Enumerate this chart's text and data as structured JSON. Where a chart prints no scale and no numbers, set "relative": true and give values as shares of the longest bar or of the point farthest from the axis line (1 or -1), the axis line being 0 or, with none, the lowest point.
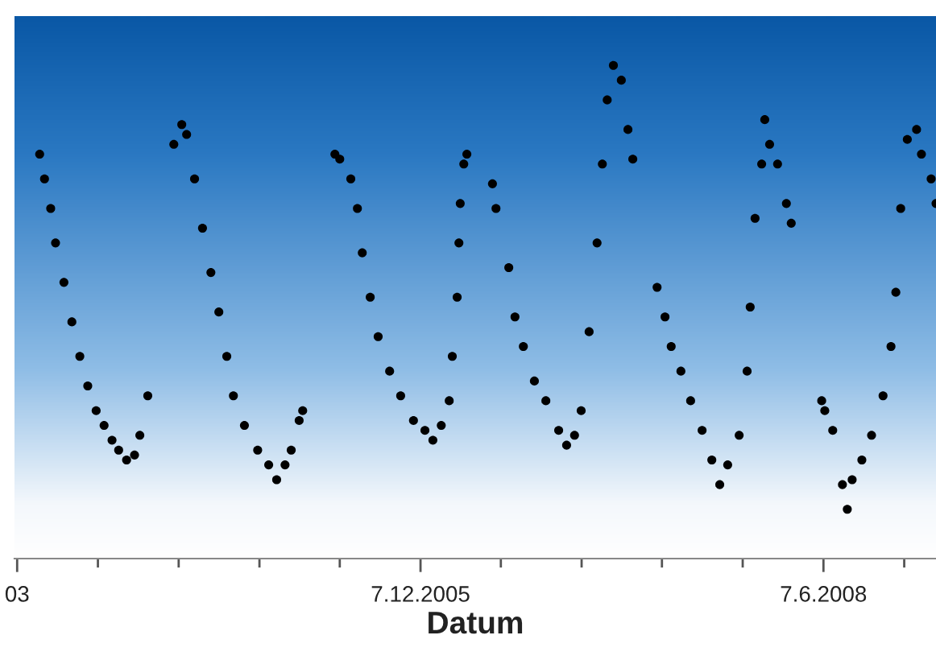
{
  "chart_data": {
    "type": "scatter",
    "relative": true,
    "xlabel": "Datum",
    "marker": "circle",
    "grid": false,
    "legend": false,
    "xlim": [
      "2003-06-01",
      "2009-02-17"
    ],
    "xticks": [
      {
        "value": "2003-06-07",
        "label": "03"
      },
      {
        "value": "2003-12-07",
        "label": null
      },
      {
        "value": "2004-06-07",
        "label": null
      },
      {
        "value": "2004-12-07",
        "label": null
      },
      {
        "value": "2005-06-07",
        "label": null
      },
      {
        "value": "2005-12-07",
        "label": "7.12.2005"
      },
      {
        "value": "2006-06-07",
        "label": null
      },
      {
        "value": "2006-12-07",
        "label": null
      },
      {
        "value": "2007-06-07",
        "label": null
      },
      {
        "value": "2007-12-07",
        "label": null
      },
      {
        "value": "2008-06-07",
        "label": "7.6.2008"
      },
      {
        "value": "2008-12-07",
        "label": null
      }
    ],
    "series": [
      {
        "color": "#000000",
        "x": [
          "2003-07-28",
          "2003-08-08",
          "2003-08-22",
          "2003-09-02",
          "2003-09-21",
          "2003-10-09",
          "2003-10-27",
          "2003-11-14",
          "2003-12-03",
          "2003-12-21",
          "2004-01-08",
          "2004-01-23",
          "2004-02-10",
          "2004-02-28",
          "2004-03-11",
          "2004-03-29",
          "2004-05-27",
          "2004-06-14",
          "2004-06-25",
          "2004-07-13",
          "2004-07-31",
          "2004-08-19",
          "2004-09-06",
          "2004-09-24",
          "2004-10-09",
          "2004-11-03",
          "2004-12-03",
          "2004-12-28",
          "2005-01-15",
          "2005-02-03",
          "2005-02-17",
          "2005-03-07",
          "2005-03-15",
          "2005-05-27",
          "2005-06-07",
          "2005-07-02",
          "2005-07-17",
          "2005-07-28",
          "2005-08-15",
          "2005-09-02",
          "2005-09-28",
          "2005-10-23",
          "2005-11-21",
          "2005-12-17",
          "2006-01-04",
          "2006-01-23",
          "2006-02-10",
          "2006-02-17",
          "2006-02-28",
          "2006-03-04",
          "2006-03-07",
          "2006-03-15",
          "2006-03-22",
          "2006-05-19",
          "2006-05-27",
          "2006-06-25",
          "2006-07-09",
          "2006-07-28",
          "2006-08-22",
          "2006-09-17",
          "2006-10-16",
          "2006-11-03",
          "2006-11-21",
          "2006-12-06",
          "2006-12-24",
          "2007-01-11",
          "2007-01-23",
          "2007-02-03",
          "2007-02-17",
          "2007-03-07",
          "2007-03-22",
          "2007-04-02",
          "2007-05-27",
          "2007-06-14",
          "2007-06-28",
          "2007-07-20",
          "2007-08-11",
          "2007-09-06",
          "2007-09-28",
          "2007-10-16",
          "2007-11-03",
          "2007-11-29",
          "2007-12-17",
          "2007-12-24",
          "2008-01-04",
          "2008-01-19",
          "2008-01-26",
          "2008-02-06",
          "2008-02-24",
          "2008-03-15",
          "2008-03-26",
          "2008-06-03",
          "2008-06-10",
          "2008-06-28",
          "2008-07-20",
          "2008-07-31",
          "2008-08-11",
          "2008-09-02",
          "2008-09-24",
          "2008-10-20",
          "2008-11-07",
          "2008-11-18",
          "2008-11-29",
          "2008-12-14",
          "2009-01-04",
          "2009-01-15",
          "2009-02-06",
          "2009-02-17"
        ],
        "values": [
          0.82,
          0.77,
          0.71,
          0.64,
          0.56,
          0.48,
          0.41,
          0.35,
          0.3,
          0.27,
          0.24,
          0.22,
          0.2,
          0.21,
          0.25,
          0.33,
          0.84,
          0.88,
          0.86,
          0.77,
          0.67,
          0.58,
          0.5,
          0.41,
          0.33,
          0.27,
          0.22,
          0.19,
          0.16,
          0.19,
          0.22,
          0.28,
          0.3,
          0.82,
          0.81,
          0.77,
          0.71,
          0.62,
          0.53,
          0.45,
          0.38,
          0.33,
          0.28,
          0.26,
          0.24,
          0.27,
          0.32,
          0.41,
          0.53,
          0.64,
          0.72,
          0.8,
          0.82,
          0.76,
          0.71,
          0.59,
          0.49,
          0.43,
          0.36,
          0.32,
          0.26,
          0.23,
          0.25,
          0.3,
          0.46,
          0.64,
          0.8,
          0.93,
          1.0,
          0.97,
          0.87,
          0.81,
          0.55,
          0.49,
          0.43,
          0.38,
          0.32,
          0.26,
          0.2,
          0.15,
          0.19,
          0.25,
          0.38,
          0.51,
          0.69,
          0.8,
          0.89,
          0.84,
          0.8,
          0.72,
          0.68,
          0.32,
          0.3,
          0.26,
          0.15,
          0.1,
          0.16,
          0.2,
          0.25,
          0.33,
          0.43,
          0.54,
          0.71,
          0.85,
          0.87,
          0.82,
          0.77,
          0.72
        ]
      }
    ]
  }
}
